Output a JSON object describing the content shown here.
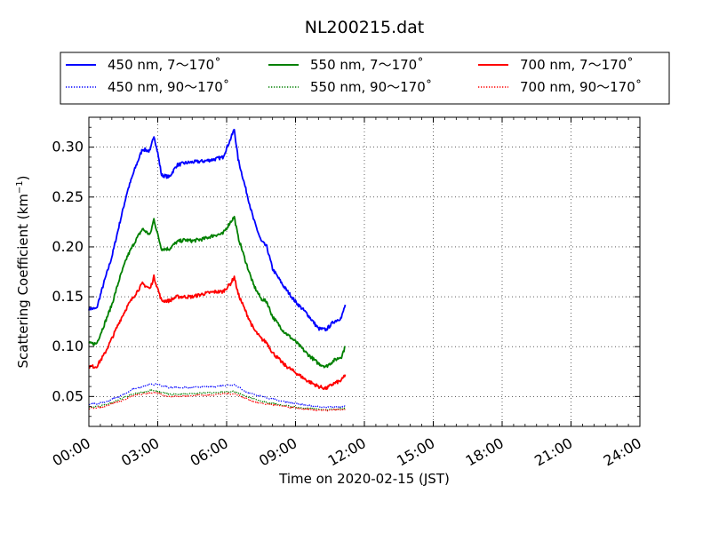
{
  "chart_data": {
    "type": "line",
    "title": "NL200215.dat",
    "xlabel": "Time on 2020-02-15 (JST)",
    "ylabel": "Scattering Coefficient (km",
    "ylabel_sup": "−1",
    "ylabel_close": ")",
    "xlim": [
      "00:00",
      "24:00"
    ],
    "ylim": [
      0.02,
      0.33
    ],
    "x_ticks": [
      "00:00",
      "03:00",
      "06:00",
      "09:00",
      "12:00",
      "15:00",
      "18:00",
      "21:00",
      "24:00"
    ],
    "y_ticks": [
      "0.05",
      "0.10",
      "0.15",
      "0.20",
      "0.25",
      "0.30"
    ],
    "grid": true,
    "legend_placement": "top (above plot)",
    "series": [
      {
        "name": "450 nm, 7～170˚",
        "color": "#0000ff",
        "style": "solid",
        "points": [
          [
            "00:00",
            0.138
          ],
          [
            "00:20",
            0.138
          ],
          [
            "00:40",
            0.165
          ],
          [
            "01:00",
            0.19
          ],
          [
            "01:20",
            0.223
          ],
          [
            "01:40",
            0.255
          ],
          [
            "02:00",
            0.278
          ],
          [
            "02:20",
            0.298
          ],
          [
            "02:40",
            0.296
          ],
          [
            "02:50",
            0.312
          ],
          [
            "03:00",
            0.294
          ],
          [
            "03:10",
            0.272
          ],
          [
            "03:30",
            0.27
          ],
          [
            "03:50",
            0.282
          ],
          [
            "04:10",
            0.284
          ],
          [
            "04:30",
            0.285
          ],
          [
            "05:00",
            0.286
          ],
          [
            "05:30",
            0.288
          ],
          [
            "05:50",
            0.29
          ],
          [
            "06:10",
            0.308
          ],
          [
            "06:20",
            0.318
          ],
          [
            "06:30",
            0.288
          ],
          [
            "06:50",
            0.258
          ],
          [
            "07:10",
            0.228
          ],
          [
            "07:30",
            0.206
          ],
          [
            "07:45",
            0.2
          ],
          [
            "08:00",
            0.178
          ],
          [
            "08:30",
            0.16
          ],
          [
            "09:00",
            0.145
          ],
          [
            "09:30",
            0.133
          ],
          [
            "10:00",
            0.118
          ],
          [
            "10:20",
            0.117
          ],
          [
            "10:40",
            0.125
          ],
          [
            "11:00",
            0.129
          ],
          [
            "11:10",
            0.142
          ]
        ]
      },
      {
        "name": "550 nm, 7～170˚",
        "color": "#008000",
        "style": "solid",
        "points": [
          [
            "00:00",
            0.103
          ],
          [
            "00:20",
            0.103
          ],
          [
            "00:40",
            0.122
          ],
          [
            "01:00",
            0.142
          ],
          [
            "01:20",
            0.168
          ],
          [
            "01:40",
            0.19
          ],
          [
            "02:00",
            0.205
          ],
          [
            "02:20",
            0.218
          ],
          [
            "02:40",
            0.212
          ],
          [
            "02:50",
            0.228
          ],
          [
            "03:00",
            0.212
          ],
          [
            "03:10",
            0.198
          ],
          [
            "03:30",
            0.198
          ],
          [
            "03:50",
            0.205
          ],
          [
            "04:10",
            0.207
          ],
          [
            "04:30",
            0.206
          ],
          [
            "05:00",
            0.208
          ],
          [
            "05:30",
            0.212
          ],
          [
            "05:50",
            0.213
          ],
          [
            "06:10",
            0.225
          ],
          [
            "06:20",
            0.23
          ],
          [
            "06:30",
            0.21
          ],
          [
            "06:50",
            0.185
          ],
          [
            "07:10",
            0.162
          ],
          [
            "07:30",
            0.148
          ],
          [
            "07:45",
            0.145
          ],
          [
            "08:00",
            0.13
          ],
          [
            "08:30",
            0.115
          ],
          [
            "09:00",
            0.105
          ],
          [
            "09:30",
            0.093
          ],
          [
            "10:00",
            0.083
          ],
          [
            "10:20",
            0.08
          ],
          [
            "10:40",
            0.086
          ],
          [
            "11:00",
            0.09
          ],
          [
            "11:10",
            0.1
          ]
        ]
      },
      {
        "name": "700 nm, 7～170˚",
        "color": "#ff0000",
        "style": "solid",
        "points": [
          [
            "00:00",
            0.08
          ],
          [
            "00:20",
            0.08
          ],
          [
            "00:40",
            0.092
          ],
          [
            "01:00",
            0.108
          ],
          [
            "01:20",
            0.125
          ],
          [
            "01:40",
            0.14
          ],
          [
            "02:00",
            0.152
          ],
          [
            "02:20",
            0.163
          ],
          [
            "02:40",
            0.158
          ],
          [
            "02:50",
            0.17
          ],
          [
            "03:00",
            0.158
          ],
          [
            "03:10",
            0.146
          ],
          [
            "03:30",
            0.146
          ],
          [
            "03:50",
            0.15
          ],
          [
            "04:10",
            0.15
          ],
          [
            "04:30",
            0.15
          ],
          [
            "05:00",
            0.153
          ],
          [
            "05:30",
            0.155
          ],
          [
            "05:50",
            0.155
          ],
          [
            "06:10",
            0.163
          ],
          [
            "06:20",
            0.17
          ],
          [
            "06:30",
            0.153
          ],
          [
            "06:50",
            0.135
          ],
          [
            "07:10",
            0.118
          ],
          [
            "07:30",
            0.108
          ],
          [
            "07:45",
            0.104
          ],
          [
            "08:00",
            0.094
          ],
          [
            "08:30",
            0.082
          ],
          [
            "09:00",
            0.074
          ],
          [
            "09:30",
            0.066
          ],
          [
            "10:00",
            0.06
          ],
          [
            "10:20",
            0.058
          ],
          [
            "10:40",
            0.063
          ],
          [
            "11:00",
            0.066
          ],
          [
            "11:10",
            0.072
          ]
        ]
      },
      {
        "name": "450 nm, 90～170˚",
        "color": "#0000ff",
        "style": "dotted",
        "points": [
          [
            "00:00",
            0.042
          ],
          [
            "00:40",
            0.044
          ],
          [
            "01:20",
            0.05
          ],
          [
            "02:00",
            0.058
          ],
          [
            "02:40",
            0.062
          ],
          [
            "03:00",
            0.062
          ],
          [
            "03:30",
            0.059
          ],
          [
            "04:30",
            0.059
          ],
          [
            "05:30",
            0.06
          ],
          [
            "06:20",
            0.062
          ],
          [
            "06:50",
            0.055
          ],
          [
            "07:30",
            0.05
          ],
          [
            "08:30",
            0.045
          ],
          [
            "09:30",
            0.041
          ],
          [
            "10:20",
            0.039
          ],
          [
            "11:10",
            0.04
          ]
        ]
      },
      {
        "name": "550 nm, 90～170˚",
        "color": "#008000",
        "style": "dotted",
        "points": [
          [
            "00:00",
            0.039
          ],
          [
            "00:40",
            0.041
          ],
          [
            "01:20",
            0.047
          ],
          [
            "02:00",
            0.053
          ],
          [
            "02:40",
            0.056
          ],
          [
            "03:00",
            0.055
          ],
          [
            "03:30",
            0.052
          ],
          [
            "04:30",
            0.053
          ],
          [
            "05:30",
            0.054
          ],
          [
            "06:20",
            0.055
          ],
          [
            "06:50",
            0.05
          ],
          [
            "07:30",
            0.045
          ],
          [
            "08:30",
            0.041
          ],
          [
            "09:30",
            0.038
          ],
          [
            "10:20",
            0.037
          ],
          [
            "11:10",
            0.038
          ]
        ]
      },
      {
        "name": "700 nm, 90～170˚",
        "color": "#ff0000",
        "style": "dotted",
        "points": [
          [
            "00:00",
            0.038
          ],
          [
            "00:40",
            0.04
          ],
          [
            "01:20",
            0.045
          ],
          [
            "02:00",
            0.051
          ],
          [
            "02:40",
            0.054
          ],
          [
            "03:00",
            0.053
          ],
          [
            "03:30",
            0.05
          ],
          [
            "04:30",
            0.051
          ],
          [
            "05:30",
            0.052
          ],
          [
            "06:20",
            0.053
          ],
          [
            "06:50",
            0.048
          ],
          [
            "07:30",
            0.043
          ],
          [
            "08:30",
            0.04
          ],
          [
            "09:30",
            0.037
          ],
          [
            "10:20",
            0.036
          ],
          [
            "11:10",
            0.037
          ]
        ]
      }
    ]
  }
}
